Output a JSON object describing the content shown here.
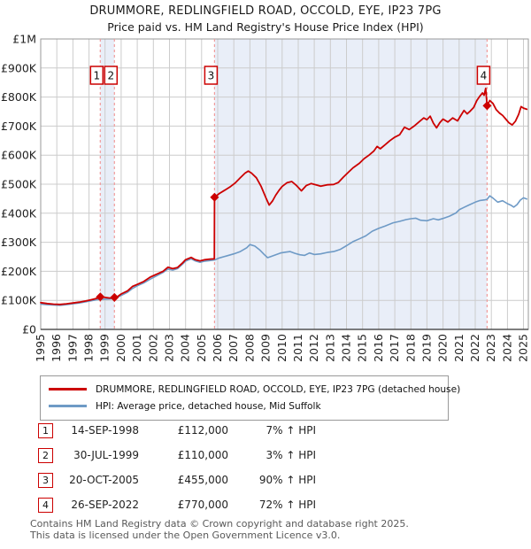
{
  "title": {
    "line1": "DRUMMORE, REDLINGFIELD ROAD, OCCOLD, EYE, IP23 7PG",
    "line2": "Price paid vs. HM Land Registry's House Price Index (HPI)"
  },
  "legend": [
    {
      "label": "DRUMMORE, REDLINGFIELD ROAD, OCCOLD, EYE, IP23 7PG (detached house)",
      "color": "#cc0000"
    },
    {
      "label": "HPI: Average price, detached house, Mid Suffolk",
      "color": "#6e9ac6"
    }
  ],
  "transactions": [
    {
      "num": "1",
      "date": "14-SEP-1998",
      "price": "£112,000",
      "vs_hpi": "7% ↑ HPI"
    },
    {
      "num": "2",
      "date": "30-JUL-1999",
      "price": "£110,000",
      "vs_hpi": "3% ↑ HPI"
    },
    {
      "num": "3",
      "date": "20-OCT-2005",
      "price": "£455,000",
      "vs_hpi": "90% ↑ HPI"
    },
    {
      "num": "4",
      "date": "26-SEP-2022",
      "price": "£770,000",
      "vs_hpi": "72% ↑ HPI"
    }
  ],
  "footer": {
    "line1": "Contains HM Land Registry data © Crown copyright and database right 2025.",
    "line2": "This data is licensed under the Open Government Licence v3.0."
  },
  "chart_data": {
    "type": "line",
    "title": "DRUMMORE, REDLINGFIELD ROAD, OCCOLD, EYE, IP23 7PG — Price paid vs. HPI",
    "x_range": [
      1995,
      2025.3
    ],
    "y_range_k": [
      0,
      1000
    ],
    "y_unit": "GBP thousands",
    "grid": true,
    "x_ticks": [
      1995,
      1996,
      1997,
      1998,
      1999,
      2000,
      2001,
      2002,
      2003,
      2004,
      2005,
      2006,
      2007,
      2008,
      2009,
      2010,
      2011,
      2012,
      2013,
      2014,
      2015,
      2016,
      2017,
      2018,
      2019,
      2020,
      2021,
      2022,
      2023,
      2024,
      2025
    ],
    "y_ticks": [
      {
        "v": 0,
        "label": "£0"
      },
      {
        "v": 100,
        "label": "£100K"
      },
      {
        "v": 200,
        "label": "£200K"
      },
      {
        "v": 300,
        "label": "£300K"
      },
      {
        "v": 400,
        "label": "£400K"
      },
      {
        "v": 500,
        "label": "£500K"
      },
      {
        "v": 600,
        "label": "£600K"
      },
      {
        "v": 700,
        "label": "£700K"
      },
      {
        "v": 800,
        "label": "£800K"
      },
      {
        "v": 900,
        "label": "£900K"
      },
      {
        "v": 1000,
        "label": "£1M"
      }
    ],
    "owned_bands": [
      [
        1998.7,
        1999.58
      ],
      [
        2005.8,
        2022.74
      ]
    ],
    "sales": [
      {
        "num": "1",
        "year": 1998.7,
        "value": 112
      },
      {
        "num": "2",
        "year": 1999.58,
        "value": 110
      },
      {
        "num": "3",
        "year": 2005.8,
        "value": 455
      },
      {
        "num": "4",
        "year": 2022.74,
        "value": 770
      }
    ],
    "colors": {
      "price": "#cc0000",
      "hpi": "#6e9ac6",
      "band": "#e9eef8",
      "grid": "#cccccc",
      "border": "#999999",
      "axis": "#333333",
      "dash": "#f19c9c",
      "tick_text": "#222222"
    },
    "series": [
      {
        "id": "hpi-series",
        "name": "HPI: Average price, detached house, Mid Suffolk",
        "color": "#6e9ac6",
        "width": 1.6,
        "points": [
          [
            1995.0,
            87
          ],
          [
            1995.4,
            85
          ],
          [
            1995.8,
            84
          ],
          [
            1996.2,
            83
          ],
          [
            1996.6,
            85
          ],
          [
            1997.0,
            88
          ],
          [
            1997.4,
            91
          ],
          [
            1997.8,
            95
          ],
          [
            1998.2,
            99
          ],
          [
            1998.5,
            102
          ],
          [
            1998.7,
            104
          ],
          [
            1999.0,
            104
          ],
          [
            1999.3,
            105
          ],
          [
            1999.58,
            107
          ],
          [
            1999.8,
            111
          ],
          [
            2000.0,
            117
          ],
          [
            2000.4,
            128
          ],
          [
            2000.7,
            141
          ],
          [
            2001.0,
            150
          ],
          [
            2001.4,
            160
          ],
          [
            2001.8,
            173
          ],
          [
            2002.2,
            184
          ],
          [
            2002.6,
            196
          ],
          [
            2002.9,
            208
          ],
          [
            2003.2,
            204
          ],
          [
            2003.5,
            209
          ],
          [
            2003.8,
            224
          ],
          [
            2004.0,
            235
          ],
          [
            2004.35,
            243
          ],
          [
            2004.6,
            236
          ],
          [
            2004.9,
            231
          ],
          [
            2005.2,
            235
          ],
          [
            2005.5,
            237
          ],
          [
            2005.8,
            239
          ],
          [
            2006.1,
            246
          ],
          [
            2006.5,
            252
          ],
          [
            2007.0,
            260
          ],
          [
            2007.4,
            268
          ],
          [
            2007.8,
            281
          ],
          [
            2008.0,
            292
          ],
          [
            2008.3,
            287
          ],
          [
            2008.6,
            274
          ],
          [
            2008.9,
            257
          ],
          [
            2009.1,
            247
          ],
          [
            2009.3,
            251
          ],
          [
            2009.6,
            257
          ],
          [
            2009.9,
            263
          ],
          [
            2010.2,
            266
          ],
          [
            2010.5,
            268
          ],
          [
            2010.8,
            262
          ],
          [
            2011.1,
            257
          ],
          [
            2011.4,
            255
          ],
          [
            2011.7,
            263
          ],
          [
            2012.0,
            258
          ],
          [
            2012.4,
            260
          ],
          [
            2012.8,
            265
          ],
          [
            2013.2,
            268
          ],
          [
            2013.6,
            275
          ],
          [
            2014.0,
            288
          ],
          [
            2014.4,
            302
          ],
          [
            2014.8,
            312
          ],
          [
            2015.2,
            322
          ],
          [
            2015.6,
            338
          ],
          [
            2016.0,
            348
          ],
          [
            2016.4,
            356
          ],
          [
            2016.9,
            367
          ],
          [
            2017.3,
            372
          ],
          [
            2017.7,
            378
          ],
          [
            2018.0,
            381
          ],
          [
            2018.3,
            383
          ],
          [
            2018.6,
            376
          ],
          [
            2019.0,
            374
          ],
          [
            2019.4,
            381
          ],
          [
            2019.7,
            377
          ],
          [
            2020.0,
            382
          ],
          [
            2020.4,
            390
          ],
          [
            2020.8,
            401
          ],
          [
            2021.0,
            412
          ],
          [
            2021.3,
            420
          ],
          [
            2021.6,
            428
          ],
          [
            2022.0,
            438
          ],
          [
            2022.3,
            444
          ],
          [
            2022.6,
            446
          ],
          [
            2022.74,
            448
          ],
          [
            2022.9,
            460
          ],
          [
            2023.1,
            452
          ],
          [
            2023.4,
            438
          ],
          [
            2023.7,
            443
          ],
          [
            2024.0,
            433
          ],
          [
            2024.2,
            428
          ],
          [
            2024.4,
            421
          ],
          [
            2024.6,
            430
          ],
          [
            2024.8,
            445
          ],
          [
            2025.0,
            453
          ],
          [
            2025.2,
            449
          ]
        ]
      },
      {
        "id": "price-series",
        "name": "DRUMMORE, REDLINGFIELD ROAD, OCCOLD, EYE, IP23 7PG (detached house)",
        "color": "#cc0000",
        "width": 1.8,
        "points": [
          [
            1995.0,
            92
          ],
          [
            1995.4,
            89
          ],
          [
            1995.8,
            87
          ],
          [
            1996.2,
            86
          ],
          [
            1996.6,
            88
          ],
          [
            1997.0,
            91
          ],
          [
            1997.4,
            94
          ],
          [
            1997.8,
            98
          ],
          [
            1998.2,
            103
          ],
          [
            1998.5,
            107
          ],
          [
            1998.7,
            112
          ],
          [
            1999.0,
            110
          ],
          [
            1999.3,
            108
          ],
          [
            1999.58,
            110
          ],
          [
            1999.8,
            114
          ],
          [
            2000.0,
            122
          ],
          [
            2000.4,
            133
          ],
          [
            2000.7,
            148
          ],
          [
            2001.0,
            155
          ],
          [
            2001.4,
            165
          ],
          [
            2001.8,
            180
          ],
          [
            2002.2,
            190
          ],
          [
            2002.6,
            200
          ],
          [
            2002.9,
            214
          ],
          [
            2003.2,
            209
          ],
          [
            2003.5,
            213
          ],
          [
            2003.8,
            228
          ],
          [
            2004.0,
            240
          ],
          [
            2004.35,
            248
          ],
          [
            2004.6,
            240
          ],
          [
            2004.9,
            236
          ],
          [
            2005.2,
            240
          ],
          [
            2005.5,
            242
          ],
          [
            2005.79,
            243
          ],
          [
            2005.8,
            455
          ],
          [
            2006.1,
            468
          ],
          [
            2006.4,
            478
          ],
          [
            2006.8,
            492
          ],
          [
            2007.1,
            505
          ],
          [
            2007.4,
            522
          ],
          [
            2007.7,
            538
          ],
          [
            2007.9,
            545
          ],
          [
            2008.1,
            538
          ],
          [
            2008.4,
            522
          ],
          [
            2008.7,
            492
          ],
          [
            2009.0,
            452
          ],
          [
            2009.2,
            428
          ],
          [
            2009.4,
            442
          ],
          [
            2009.6,
            462
          ],
          [
            2009.8,
            478
          ],
          [
            2010.0,
            492
          ],
          [
            2010.3,
            505
          ],
          [
            2010.6,
            509
          ],
          [
            2010.9,
            495
          ],
          [
            2011.2,
            477
          ],
          [
            2011.5,
            495
          ],
          [
            2011.8,
            502
          ],
          [
            2012.1,
            498
          ],
          [
            2012.4,
            493
          ],
          [
            2012.8,
            498
          ],
          [
            2013.2,
            499
          ],
          [
            2013.5,
            506
          ],
          [
            2013.8,
            524
          ],
          [
            2014.1,
            540
          ],
          [
            2014.4,
            556
          ],
          [
            2014.8,
            572
          ],
          [
            2015.1,
            588
          ],
          [
            2015.4,
            600
          ],
          [
            2015.7,
            614
          ],
          [
            2015.9,
            630
          ],
          [
            2016.1,
            622
          ],
          [
            2016.4,
            636
          ],
          [
            2016.7,
            650
          ],
          [
            2017.0,
            662
          ],
          [
            2017.3,
            670
          ],
          [
            2017.6,
            696
          ],
          [
            2017.9,
            688
          ],
          [
            2018.2,
            700
          ],
          [
            2018.5,
            714
          ],
          [
            2018.8,
            728
          ],
          [
            2019.0,
            722
          ],
          [
            2019.2,
            734
          ],
          [
            2019.4,
            710
          ],
          [
            2019.6,
            694
          ],
          [
            2019.8,
            712
          ],
          [
            2020.0,
            724
          ],
          [
            2020.3,
            714
          ],
          [
            2020.6,
            728
          ],
          [
            2020.9,
            718
          ],
          [
            2021.1,
            736
          ],
          [
            2021.3,
            754
          ],
          [
            2021.5,
            742
          ],
          [
            2021.7,
            752
          ],
          [
            2021.9,
            764
          ],
          [
            2022.1,
            788
          ],
          [
            2022.3,
            804
          ],
          [
            2022.45,
            814
          ],
          [
            2022.55,
            806
          ],
          [
            2022.65,
            830
          ],
          [
            2022.74,
            770
          ],
          [
            2022.9,
            788
          ],
          [
            2023.1,
            778
          ],
          [
            2023.3,
            757
          ],
          [
            2023.5,
            745
          ],
          [
            2023.7,
            737
          ],
          [
            2023.9,
            724
          ],
          [
            2024.1,
            711
          ],
          [
            2024.3,
            704
          ],
          [
            2024.5,
            717
          ],
          [
            2024.7,
            741
          ],
          [
            2024.85,
            767
          ],
          [
            2025.0,
            762
          ],
          [
            2025.2,
            758
          ]
        ]
      }
    ]
  }
}
